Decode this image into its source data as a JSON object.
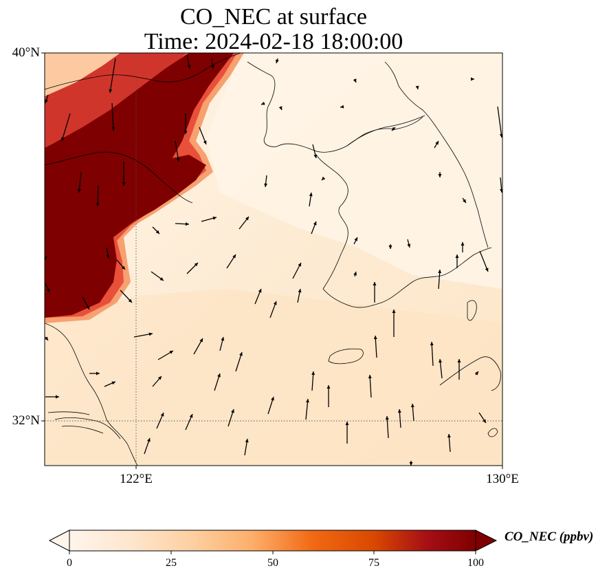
{
  "title": {
    "line1": "CO_NEC at surface",
    "line2": "Time: 2024-02-18 18:00:00"
  },
  "map": {
    "lat_labels": [
      "40°N",
      "32°N"
    ],
    "lon_labels": [
      "122°E",
      "130°E"
    ],
    "extent": {
      "lon_min": 120,
      "lon_max": 130,
      "lat_min": 31,
      "lat_max": 40
    },
    "gridlines": {
      "lon": [
        122,
        130
      ],
      "lat": [
        32,
        40
      ],
      "style": "dotted"
    }
  },
  "colorbar": {
    "label": "CO_NEC (ppbv)",
    "ticks": [
      "0",
      "25",
      "50",
      "75",
      "100"
    ],
    "range": [
      0,
      100
    ],
    "extend": "both",
    "colormap": [
      "#fff5eb",
      "#fee6ce",
      "#fdd0a2",
      "#fdae6b",
      "#fd8d3c",
      "#f16913",
      "#d94801",
      "#a50f15",
      "#7f0000"
    ]
  },
  "colors": {
    "high": "#7f0000",
    "mid_red": "#c8281e",
    "orange": "#f4895c",
    "light": "#fde4c6",
    "background": "#fff3e3"
  }
}
